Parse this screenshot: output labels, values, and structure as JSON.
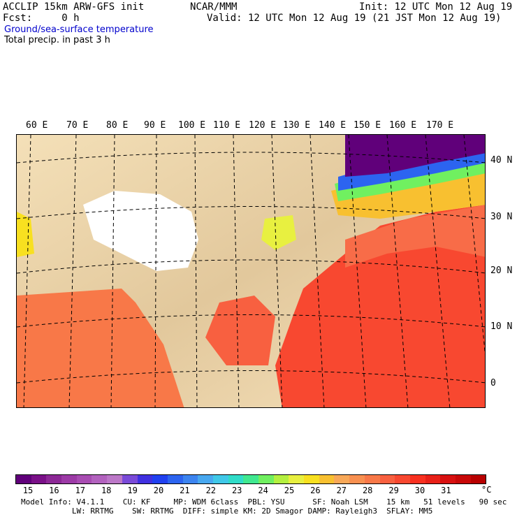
{
  "header": {
    "line1_left": "ACCLIP 15km ARW-GFS init",
    "line1_mid": "NCAR/MMM",
    "line1_right": "Init: 12 UTC Mon 12 Aug 19",
    "line2_left": "Fcst:     0 h",
    "line2_right": "Valid: 12 UTC Mon 12 Aug 19 (21 JST Mon 12 Aug 19)",
    "line3": "Ground/sea-surface temperature",
    "line4": "Total precip. in past 3 h"
  },
  "lon_labels": [
    "60 E",
    "70 E",
    "80 E",
    "90 E",
    "100 E",
    "110 E",
    "120 E",
    "130 E",
    "140 E",
    "150 E",
    "160 E",
    "170 E"
  ],
  "lat_labels": [
    "40 N",
    "30 N",
    "20 N",
    "10 N",
    "0"
  ],
  "colorbar": {
    "unit": "°C",
    "ticks": [
      "15",
      "16",
      "17",
      "18",
      "19",
      "20",
      "21",
      "22",
      "23",
      "24",
      "25",
      "26",
      "27",
      "28",
      "29",
      "30",
      "31"
    ],
    "colors": [
      "#60007a",
      "#7a1088",
      "#8c2896",
      "#9c3aa6",
      "#a84cb2",
      "#b262be",
      "#bc78c8",
      "#7a4ad8",
      "#4030e0",
      "#2040f0",
      "#2c64f0",
      "#3c84f0",
      "#48a8f0",
      "#40c8e8",
      "#30dcc8",
      "#40e890",
      "#70f060",
      "#b4f040",
      "#e8f040",
      "#f8e020",
      "#f8c030",
      "#f8a858",
      "#f89050",
      "#f87848",
      "#f86040",
      "#f84830",
      "#f83020",
      "#e82018",
      "#d81010",
      "#c80808",
      "#b80000"
    ]
  },
  "info": {
    "line1": "Model Info: V4.1.1    CU: KF     MP: WDM 6class  PBL: YSU      SF: Noah LSM    15 km   51 levels   90 sec",
    "line2": "           LW: RRTMG    SW: RRTMG  DIFF: simple KM: 2D Smagor DAMP: Rayleigh3  SFLAY: MM5"
  }
}
